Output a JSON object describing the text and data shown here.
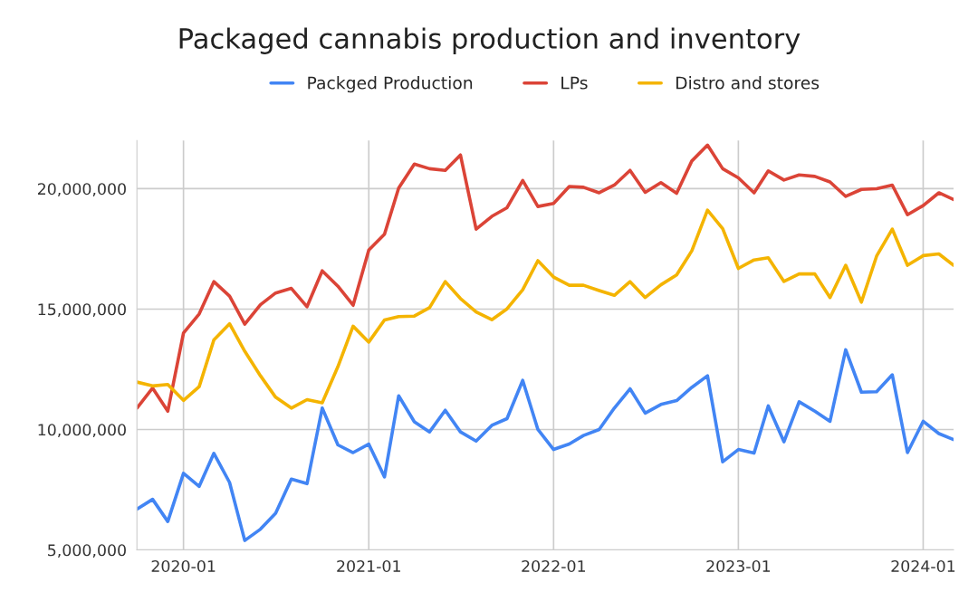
{
  "chart_data": {
    "type": "line",
    "title": "Packaged cannabis production and inventory",
    "x": [
      "2019-10",
      "2019-11",
      "2019-12",
      "2020-01",
      "2020-02",
      "2020-03",
      "2020-04",
      "2020-05",
      "2020-06",
      "2020-07",
      "2020-08",
      "2020-09",
      "2020-10",
      "2020-11",
      "2020-12",
      "2021-01",
      "2021-02",
      "2021-03",
      "2021-04",
      "2021-05",
      "2021-06",
      "2021-07",
      "2021-08",
      "2021-09",
      "2021-10",
      "2021-11",
      "2021-12",
      "2022-01",
      "2022-02",
      "2022-03",
      "2022-04",
      "2022-05",
      "2022-06",
      "2022-07",
      "2022-08",
      "2022-09",
      "2022-10",
      "2022-11",
      "2022-12",
      "2023-01",
      "2023-02",
      "2023-03",
      "2023-04",
      "2023-05",
      "2023-06",
      "2023-07",
      "2023-08",
      "2023-09",
      "2023-10",
      "2023-11",
      "2023-12",
      "2024-01",
      "2024-02",
      "2024-03"
    ],
    "series": [
      {
        "name": "Packged Production",
        "color": "#4285f4",
        "values": [
          6690000,
          7100000,
          6180000,
          8180000,
          7640000,
          9010000,
          7800000,
          5390000,
          5860000,
          6520000,
          7940000,
          7750000,
          10890000,
          9360000,
          9040000,
          9390000,
          8030000,
          11400000,
          10320000,
          9900000,
          10800000,
          9900000,
          9520000,
          10170000,
          10450000,
          12040000,
          10000000,
          9170000,
          9400000,
          9750000,
          10000000,
          10890000,
          11690000,
          10680000,
          11040000,
          11200000,
          11750000,
          12230000,
          8660000,
          9170000,
          9020000,
          10980000,
          9490000,
          11150000,
          10760000,
          10340000,
          13310000,
          11550000,
          11570000,
          12270000,
          9040000,
          10340000,
          9830000,
          9580000
        ]
      },
      {
        "name": "LPs",
        "color": "#db4437",
        "values": [
          10890000,
          11720000,
          10760000,
          14010000,
          14800000,
          16140000,
          15540000,
          14370000,
          15180000,
          15670000,
          15860000,
          15100000,
          16590000,
          15950000,
          15160000,
          17450000,
          18110000,
          20030000,
          21020000,
          20830000,
          20760000,
          21400000,
          18320000,
          18850000,
          19210000,
          20340000,
          19260000,
          19390000,
          20090000,
          20060000,
          19830000,
          20150000,
          20760000,
          19850000,
          20250000,
          19810000,
          21150000,
          21810000,
          20830000,
          20450000,
          19830000,
          20740000,
          20360000,
          20570000,
          20510000,
          20280000,
          19680000,
          19970000,
          20000000,
          20150000,
          18920000,
          19300000,
          19830000,
          19550000
        ]
      },
      {
        "name": "Distro and stores",
        "color": "#f4b400",
        "values": [
          11970000,
          11810000,
          11870000,
          11210000,
          11780000,
          13720000,
          14390000,
          13250000,
          12230000,
          11340000,
          10890000,
          11240000,
          11110000,
          12610000,
          14290000,
          13630000,
          14550000,
          14690000,
          14710000,
          15060000,
          16140000,
          15440000,
          14880000,
          14560000,
          15010000,
          15800000,
          17010000,
          16330000,
          15990000,
          15990000,
          15770000,
          15570000,
          16140000,
          15480000,
          16010000,
          16420000,
          17420000,
          19110000,
          18340000,
          16690000,
          17040000,
          17130000,
          16150000,
          16460000,
          16460000,
          15480000,
          16820000,
          15290000,
          17200000,
          18320000,
          16820000,
          17220000,
          17290000,
          16820000
        ]
      }
    ],
    "xlim": [
      "2019-10",
      "2024-03"
    ],
    "xticks": [
      "2020-01",
      "2021-01",
      "2022-01",
      "2023-01",
      "2024-01"
    ],
    "ylim": [
      5000000,
      22000000
    ],
    "yticks": [
      {
        "value": 5000000,
        "label": "5,000,000"
      },
      {
        "value": 10000000,
        "label": "10,000,000"
      },
      {
        "value": 15000000,
        "label": "15,000,000"
      },
      {
        "value": 20000000,
        "label": "20,000,000"
      }
    ],
    "grid": true,
    "legend": "top",
    "line_style": "solid",
    "marker": "none"
  }
}
